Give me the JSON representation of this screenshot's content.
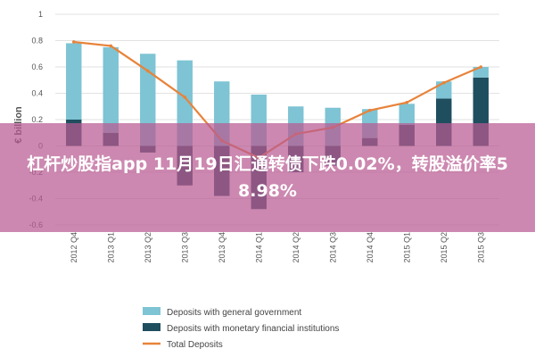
{
  "headline": "杠杆炒股指app 11月19日汇通转债下跌0.02%，转股溢价率58.98%",
  "chart_data": {
    "type": "bar",
    "categories": [
      "2012 Q4",
      "2013 Q1",
      "2013 Q2",
      "2013 Q3",
      "2013 Q4",
      "2014 Q1",
      "2014 Q2",
      "2014 Q3",
      "2014 Q4",
      "2015 Q1",
      "2015 Q2",
      "2015 Q3"
    ],
    "ylabel": "€ billion",
    "ylim": [
      -0.6,
      1.0
    ],
    "yticks": [
      "1",
      "0.8",
      "0.6",
      "0.4",
      "0.2",
      "0",
      "-0.2",
      "-0.4",
      "-0.6"
    ],
    "series": [
      {
        "name": "Deposits with general government",
        "kind": "bar",
        "color": "#7ec4d4",
        "values": [
          0.58,
          0.65,
          0.7,
          0.65,
          0.49,
          0.39,
          0.3,
          0.29,
          0.22,
          0.16,
          0.13,
          0.08
        ]
      },
      {
        "name": "Deposits with monetary financial institutions",
        "kind": "bar",
        "color": "#1f4e5f",
        "values": [
          0.2,
          0.1,
          -0.05,
          -0.3,
          -0.38,
          -0.48,
          -0.2,
          -0.15,
          0.06,
          0.16,
          0.36,
          0.52
        ]
      },
      {
        "name": "Total Deposits",
        "kind": "line",
        "color": "#e8833a",
        "values": [
          0.79,
          0.76,
          0.57,
          0.37,
          0.04,
          -0.09,
          0.09,
          0.14,
          0.27,
          0.33,
          0.48,
          0.6
        ]
      }
    ],
    "legend_position": "bottom"
  }
}
